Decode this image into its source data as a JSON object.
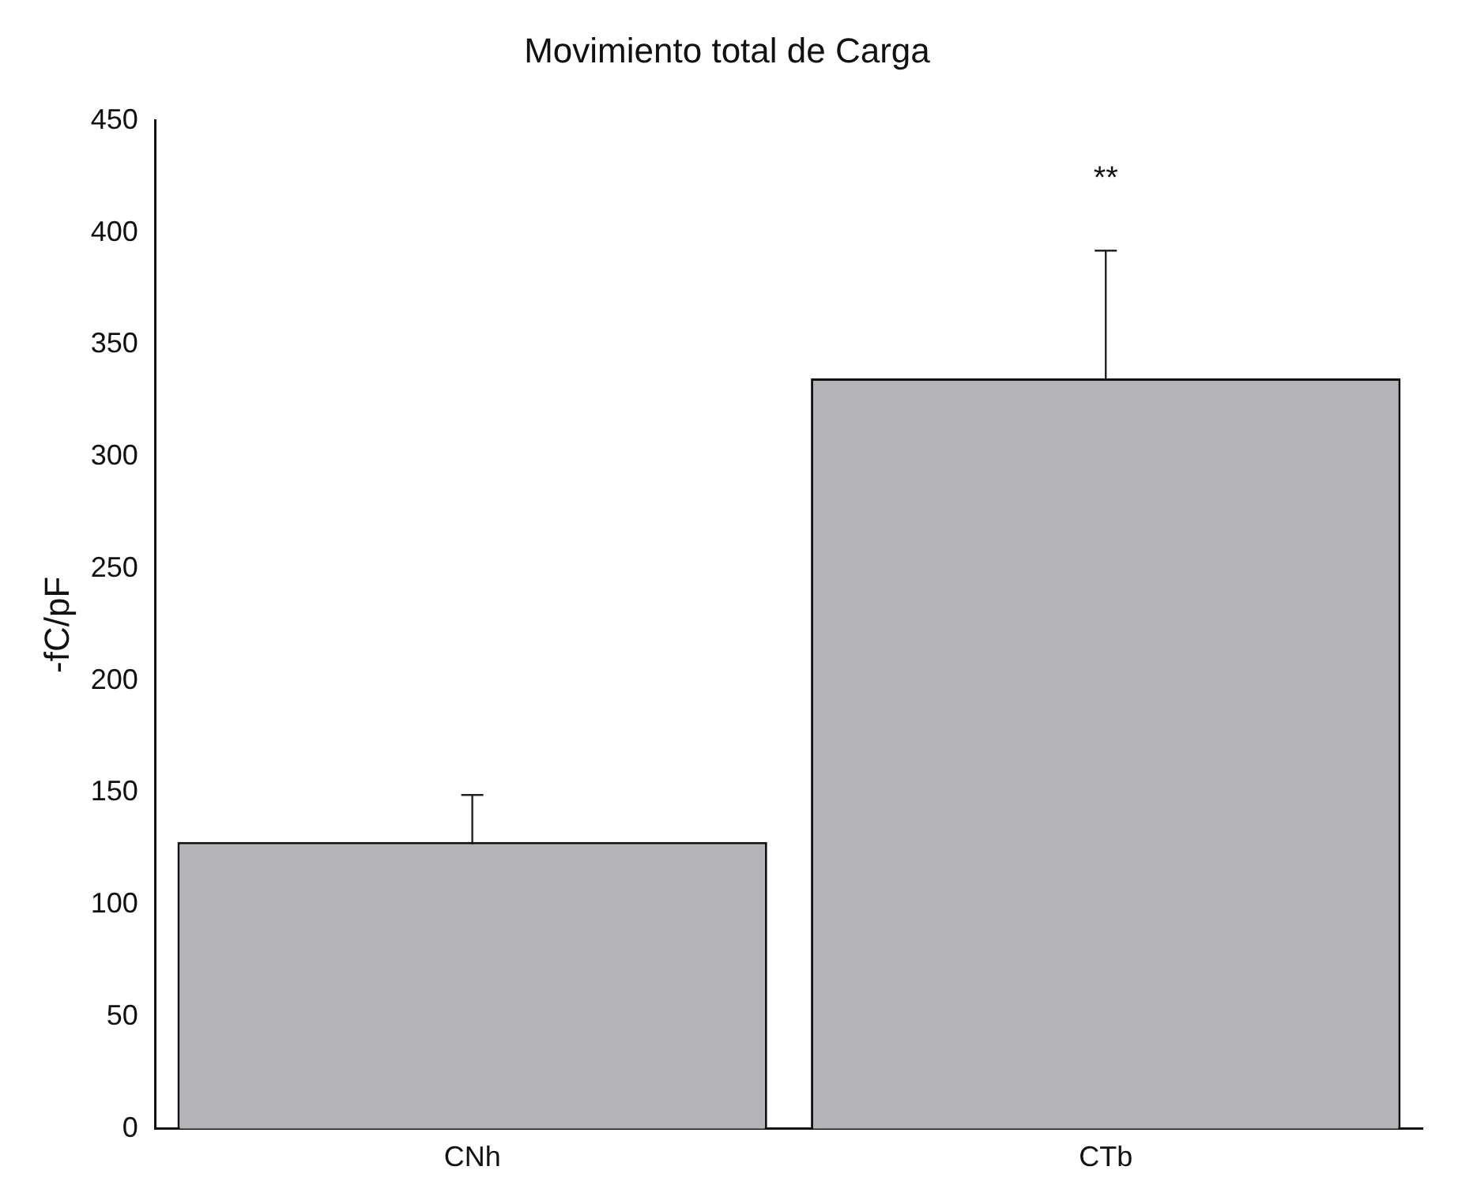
{
  "chart_data": {
    "type": "bar",
    "title": "Movimiento total de Carga",
    "ylabel": "-fC/pF",
    "categories": [
      "CNh",
      "CTb"
    ],
    "values": [
      128,
      335
    ],
    "errors": [
      21,
      57
    ],
    "color": "#b4b4b8",
    "ylim": [
      0,
      450
    ],
    "yticks": [
      0,
      50,
      100,
      150,
      200,
      250,
      300,
      350,
      400,
      450
    ],
    "grid": false,
    "legend": false,
    "annotations": [
      "**"
    ]
  }
}
